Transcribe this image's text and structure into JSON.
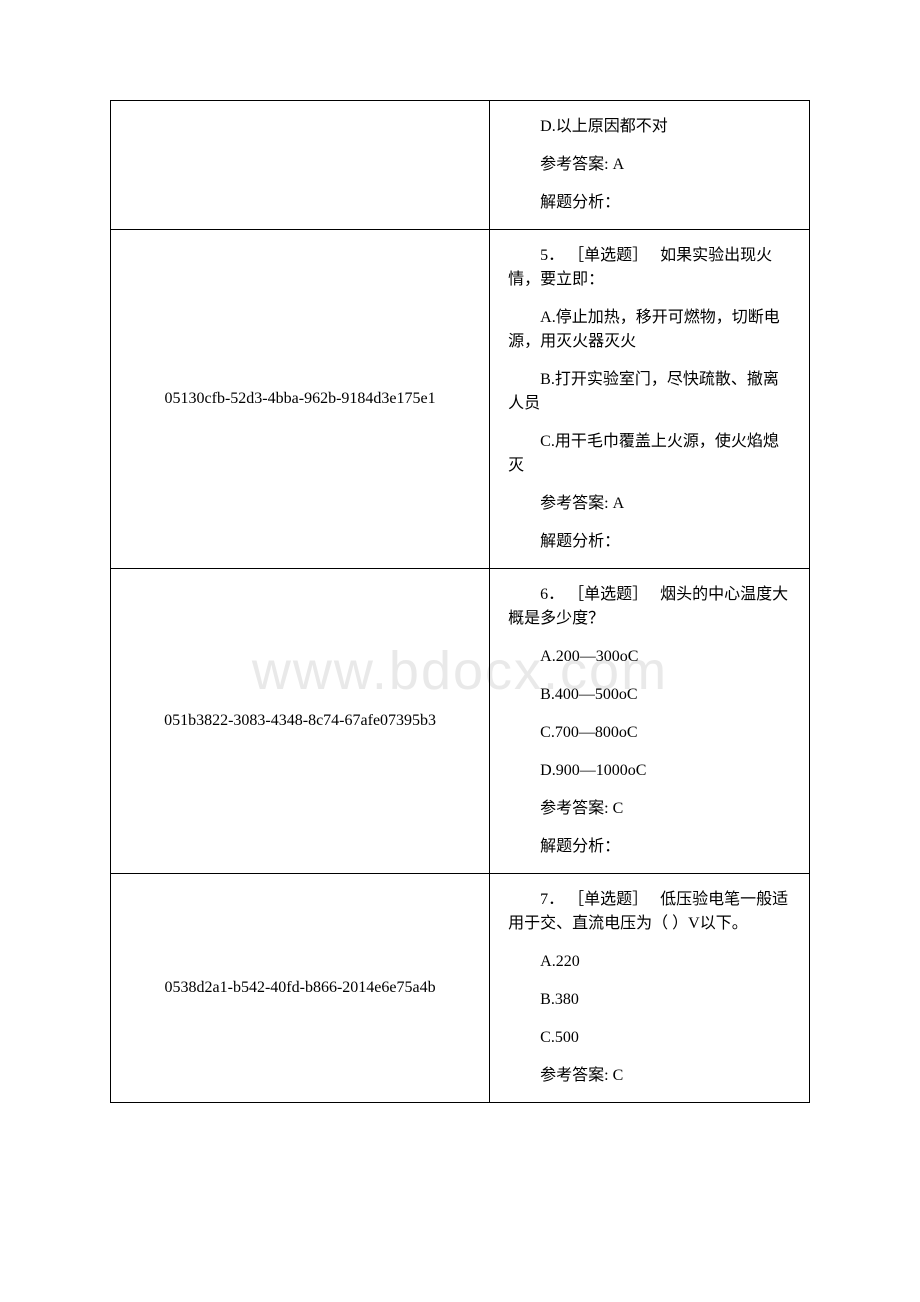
{
  "watermark": "www.bdocx.com",
  "rows": [
    {
      "id": "",
      "q_num": "",
      "q_type": "",
      "stem": "",
      "options": [
        "D.以上原因都不对"
      ],
      "answer_label": "参考答案:",
      "answer": "A",
      "analysis_label": "解题分析：",
      "analysis": ""
    },
    {
      "id": "05130cfb-52d3-4bba-962b-9184d3e175e1",
      "q_num": "5．",
      "q_type": "［单选题］",
      "stem": "如果实验出现火情，要立即：",
      "options": [
        "A.停止加热，移开可燃物，切断电源，用灭火器灭火",
        "B.打开实验室门，尽快疏散、撤离人员",
        "C.用干毛巾覆盖上火源，使火焰熄灭"
      ],
      "answer_label": "参考答案:",
      "answer": "A",
      "analysis_label": "解题分析：",
      "analysis": ""
    },
    {
      "id": "051b3822-3083-4348-8c74-67afe07395b3",
      "q_num": "6．",
      "q_type": "［单选题］",
      "stem": "烟头的中心温度大概是多少度？",
      "options": [
        "A.200—300oC",
        "B.400—500oC",
        "C.700—800oC",
        "D.900—1000oC"
      ],
      "answer_label": "参考答案:",
      "answer": "C",
      "analysis_label": "解题分析：",
      "analysis": ""
    },
    {
      "id": "0538d2a1-b542-40fd-b866-2014e6e75a4b",
      "q_num": "7．",
      "q_type": "［单选题］",
      "stem": "低压验电笔一般适用于交、直流电压为（ ）V以下。",
      "options": [
        "A.220",
        "B.380",
        "C.500"
      ],
      "answer_label": "参考答案:",
      "answer": "C",
      "analysis_label": "",
      "analysis": ""
    }
  ]
}
